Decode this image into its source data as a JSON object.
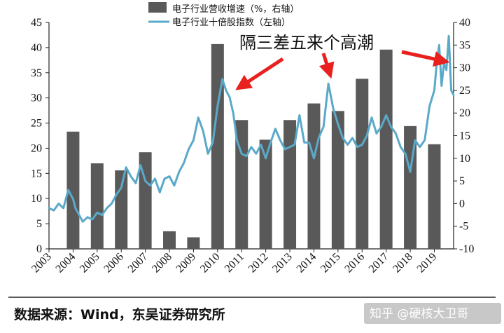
{
  "chart_data": {
    "type": "bar+line",
    "categories": [
      "2003",
      "2004",
      "2005",
      "2006",
      "2007",
      "2008",
      "2009",
      "2010",
      "2011",
      "2012",
      "2013",
      "2014",
      "2015",
      "2016",
      "2017",
      "2018",
      "2019"
    ],
    "series": [
      {
        "name": "电子行业营收增速（%，右轴）",
        "type": "bar",
        "axis": "left",
        "color": "#595959",
        "values": [
          null,
          23.3,
          17.0,
          15.6,
          19.2,
          3.5,
          2.3,
          40.7,
          25.6,
          21.7,
          25.6,
          28.9,
          27.4,
          33.8,
          39.6,
          24.4,
          20.8
        ]
      },
      {
        "name": "电子行业十倍股指数（左轴）",
        "type": "line",
        "axis": "right",
        "color": "#5aa9c9",
        "x": [
          2003.0,
          2003.2,
          2003.4,
          2003.6,
          2003.8,
          2004.0,
          2004.1,
          2004.2,
          2004.4,
          2004.6,
          2004.8,
          2005.0,
          2005.2,
          2005.4,
          2005.6,
          2005.8,
          2006.0,
          2006.2,
          2006.4,
          2006.6,
          2006.8,
          2007.0,
          2007.2,
          2007.4,
          2007.6,
          2007.8,
          2008.0,
          2008.2,
          2008.4,
          2008.6,
          2008.8,
          2009.0,
          2009.2,
          2009.4,
          2009.6,
          2009.8,
          2010.0,
          2010.2,
          2010.35,
          2010.5,
          2010.65,
          2010.8,
          2011.0,
          2011.2,
          2011.4,
          2011.6,
          2011.8,
          2012.0,
          2012.2,
          2012.4,
          2012.6,
          2012.8,
          2013.0,
          2013.2,
          2013.4,
          2013.6,
          2013.8,
          2014.0,
          2014.2,
          2014.4,
          2014.6,
          2014.8,
          2015.0,
          2015.2,
          2015.4,
          2015.6,
          2015.8,
          2016.0,
          2016.2,
          2016.4,
          2016.6,
          2016.8,
          2017.0,
          2017.2,
          2017.4,
          2017.6,
          2017.8,
          2018.0,
          2018.2,
          2018.4,
          2018.6,
          2018.8,
          2019.0,
          2019.1,
          2019.2,
          2019.3,
          2019.4,
          2019.5,
          2019.6,
          2019.7,
          2019.8
        ],
        "values": [
          -1.0,
          -1.5,
          0.0,
          -1.0,
          3.0,
          1.0,
          -1.0,
          -2.0,
          -4.0,
          -3.0,
          -3.5,
          -2.0,
          -2.5,
          -1.0,
          0.0,
          2.0,
          3.5,
          8.0,
          6.0,
          4.5,
          8.5,
          5.0,
          4.0,
          5.5,
          2.5,
          5.5,
          6.0,
          4.0,
          7.0,
          9.0,
          12.0,
          14.0,
          19.0,
          16.0,
          11.0,
          13.5,
          21.5,
          27.5,
          25.0,
          23.5,
          20.0,
          14.0,
          11.0,
          10.5,
          12.5,
          11.0,
          13.0,
          10.0,
          13.5,
          16.5,
          14.0,
          12.0,
          12.5,
          13.0,
          19.5,
          13.5,
          13.5,
          10.0,
          14.5,
          17.0,
          26.5,
          21.0,
          17.5,
          14.5,
          13.0,
          14.5,
          12.5,
          13.0,
          15.0,
          19.0,
          15.5,
          17.0,
          19.5,
          17.0,
          15.5,
          12.5,
          11.0,
          7.0,
          14.0,
          12.5,
          14.0,
          21.5,
          25.0,
          31.0,
          35.0,
          26.0,
          31.0,
          29.5,
          37.0,
          25.0,
          24.0
        ]
      }
    ],
    "y_left": {
      "min": 0,
      "max": 45,
      "ticks": [
        0,
        5,
        10,
        15,
        20,
        25,
        30,
        35,
        40,
        45
      ]
    },
    "y_right": {
      "min": -10,
      "max": 40,
      "ticks": [
        -10,
        -5,
        0,
        5,
        10,
        15,
        20,
        25,
        30,
        35,
        40
      ]
    },
    "x_range": [
      2003,
      2019.8
    ],
    "annotation": "隔三差五来个高潮",
    "source": "数据来源：Wind，东吴证券研究所",
    "watermark": "知乎 @硬核大卫哥",
    "grid": false,
    "legend_position": "top-center",
    "colors": {
      "bar": "#595959",
      "line": "#5aa9c9",
      "arrow": "#e8201e",
      "axis": "#222222",
      "rule": "#222222"
    }
  }
}
